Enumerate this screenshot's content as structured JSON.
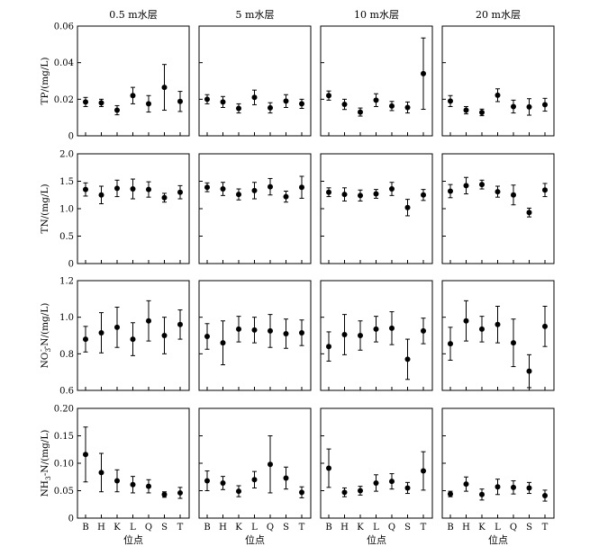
{
  "chart_data": {
    "type": "scatter",
    "description_style": "mean with error bars, 4 rows (variables) x 4 columns (depth layers)",
    "columns": [
      "0.5 m水层",
      "5 m水层",
      "10 m水层",
      "20 m水层"
    ],
    "sites": [
      "B",
      "H",
      "K",
      "L",
      "Q",
      "S",
      "T"
    ],
    "xlabel": "位点",
    "rows": [
      {
        "id": "tp",
        "ylabel_main": "TP/(mg/L)",
        "ylim": [
          0,
          0.06
        ],
        "ticks": [
          0,
          0.02,
          0.04,
          0.06
        ],
        "tick_labels": [
          "0",
          "0.02",
          "0.04",
          "0.06"
        ],
        "panels": [
          {
            "mean": [
              0.0185,
              0.018,
              0.014,
              0.022,
              0.0175,
              0.0265,
              0.0188
            ],
            "err": [
              0.0025,
              0.002,
              0.0025,
              0.0045,
              0.0045,
              0.0125,
              0.0055
            ]
          },
          {
            "mean": [
              0.02,
              0.0185,
              0.015,
              0.021,
              0.0153,
              0.019,
              0.0175
            ],
            "err": [
              0.0025,
              0.003,
              0.0025,
              0.004,
              0.0028,
              0.0035,
              0.0025
            ]
          },
          {
            "mean": [
              0.022,
              0.0172,
              0.013,
              0.0195,
              0.0163,
              0.0155,
              0.034
            ],
            "err": [
              0.0025,
              0.0028,
              0.0022,
              0.0035,
              0.0025,
              0.003,
              0.0195
            ]
          },
          {
            "mean": [
              0.019,
              0.014,
              0.0128,
              0.0222,
              0.016,
              0.0158,
              0.017
            ],
            "err": [
              0.003,
              0.002,
              0.0018,
              0.0035,
              0.0035,
              0.0045,
              0.0035
            ]
          }
        ]
      },
      {
        "id": "tn",
        "ylabel_main": "TN/(mg/L)",
        "ylim": [
          0,
          2.0
        ],
        "ticks": [
          0,
          0.5,
          1.0,
          1.5,
          2.0
        ],
        "tick_labels": [
          "0",
          "0.5",
          "1.0",
          "1.5",
          "2.0"
        ],
        "panels": [
          {
            "mean": [
              1.35,
              1.25,
              1.37,
              1.36,
              1.35,
              1.2,
              1.3
            ],
            "err": [
              0.12,
              0.16,
              0.15,
              0.18,
              0.14,
              0.08,
              0.12
            ]
          },
          {
            "mean": [
              1.39,
              1.36,
              1.26,
              1.33,
              1.4,
              1.22,
              1.39
            ],
            "err": [
              0.08,
              0.12,
              0.1,
              0.15,
              0.15,
              0.1,
              0.2
            ]
          },
          {
            "mean": [
              1.3,
              1.26,
              1.24,
              1.27,
              1.36,
              1.02,
              1.25
            ],
            "err": [
              0.08,
              0.12,
              0.1,
              0.08,
              0.12,
              0.15,
              0.1
            ]
          },
          {
            "mean": [
              1.32,
              1.42,
              1.44,
              1.31,
              1.25,
              0.93,
              1.34
            ],
            "err": [
              0.12,
              0.15,
              0.08,
              0.1,
              0.18,
              0.08,
              0.12
            ]
          }
        ]
      },
      {
        "id": "no3",
        "ylabel_main": "NO",
        "ylabel_sub": "3",
        "ylabel_sup": "-",
        "ylabel_rest": "-N/(mg/L)",
        "ylim": [
          0.6,
          1.2
        ],
        "ticks": [
          0.6,
          0.8,
          1.0,
          1.2
        ],
        "tick_labels": [
          "0.6",
          "0.8",
          "1.0",
          "1.2"
        ],
        "panels": [
          {
            "mean": [
              0.88,
              0.915,
              0.945,
              0.88,
              0.98,
              0.9,
              0.96
            ],
            "err": [
              0.07,
              0.11,
              0.11,
              0.09,
              0.11,
              0.1,
              0.08
            ]
          },
          {
            "mean": [
              0.895,
              0.86,
              0.935,
              0.93,
              0.925,
              0.91,
              0.915
            ],
            "err": [
              0.07,
              0.12,
              0.07,
              0.07,
              0.09,
              0.08,
              0.07
            ]
          },
          {
            "mean": [
              0.84,
              0.905,
              0.9,
              0.935,
              0.94,
              0.77,
              0.925
            ],
            "err": [
              0.08,
              0.11,
              0.08,
              0.07,
              0.09,
              0.11,
              0.07
            ]
          },
          {
            "mean": [
              0.855,
              0.98,
              0.935,
              0.96,
              0.86,
              0.705,
              0.95
            ],
            "err": [
              0.09,
              0.11,
              0.07,
              0.1,
              0.13,
              0.09,
              0.11
            ]
          }
        ]
      },
      {
        "id": "nh3",
        "ylabel_main": "NH",
        "ylabel_sub": "3",
        "ylabel_rest": "-N/(mg/L)",
        "ylim": [
          0,
          0.2
        ],
        "ticks": [
          0,
          0.05,
          0.1,
          0.15,
          0.2
        ],
        "tick_labels": [
          "0",
          "0.05",
          "0.10",
          "0.15",
          "0.20"
        ],
        "panels": [
          {
            "mean": [
              0.116,
              0.083,
              0.068,
              0.061,
              0.058,
              0.043,
              0.046
            ],
            "err": [
              0.05,
              0.035,
              0.02,
              0.015,
              0.012,
              0.005,
              0.01
            ]
          },
          {
            "mean": [
              0.068,
              0.064,
              0.049,
              0.07,
              0.098,
              0.073,
              0.047
            ],
            "err": [
              0.018,
              0.012,
              0.01,
              0.015,
              0.052,
              0.02,
              0.01
            ]
          },
          {
            "mean": [
              0.091,
              0.047,
              0.05,
              0.064,
              0.067,
              0.055,
              0.086
            ],
            "err": [
              0.035,
              0.008,
              0.008,
              0.015,
              0.014,
              0.01,
              0.035
            ]
          },
          {
            "mean": [
              0.044,
              0.062,
              0.043,
              0.057,
              0.056,
              0.055,
              0.041
            ],
            "err": [
              0.005,
              0.013,
              0.01,
              0.014,
              0.012,
              0.01,
              0.01
            ]
          }
        ]
      }
    ]
  }
}
